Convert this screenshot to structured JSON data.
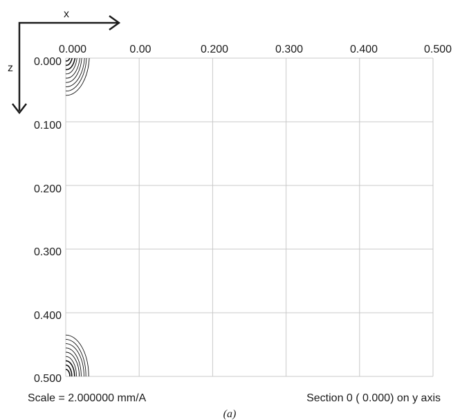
{
  "chart_data": {
    "type": "contour",
    "x_tick_labels": [
      "0.000",
      "0.00",
      "0.200",
      "0.300",
      "0.400",
      "0.500"
    ],
    "z_tick_labels": [
      "0.000",
      "0.100",
      "0.200",
      "0.300",
      "0.400",
      "0.500"
    ],
    "xlim": [
      0,
      0.5
    ],
    "zlim": [
      0,
      0.5
    ],
    "x_axis_label": "x",
    "z_axis_label": "z",
    "grid": true,
    "scale_text": "Scale = 2.000000 mm/A",
    "section_text": "Section 0 ( 0.000) on y axis",
    "panel_label": "(a)",
    "peaks": [
      {
        "x": 0.0,
        "z": 0.0
      },
      {
        "x": 0.0,
        "z": 0.5
      }
    ],
    "colors": {
      "grid": "#c8c8c8",
      "axis": "#1a1a1a",
      "contour": "#111111"
    }
  }
}
